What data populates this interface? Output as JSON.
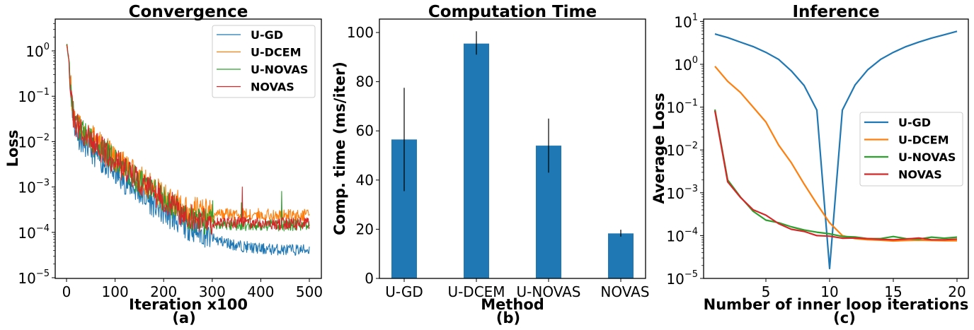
{
  "colors": {
    "U-GD": "#1f77b4",
    "U-DCEM": "#ff7f0e",
    "U-NOVAS": "#2ca02c",
    "NOVAS": "#d62728",
    "bar": "#1f77b4"
  },
  "chart_data": [
    {
      "id": "a",
      "type": "line",
      "title": "Convergence",
      "xlabel": "Iteration x100",
      "ylabel": "Loss",
      "subcaption": "(a)",
      "yscale": "log",
      "xlim": [
        -25,
        525
      ],
      "ylim": [
        1e-05,
        5
      ],
      "xticks": [
        0,
        100,
        200,
        300,
        400,
        500
      ],
      "yticks": [
        -5,
        -4,
        -3,
        -2,
        -1,
        0
      ],
      "legend": {
        "position": "upper right",
        "entries": [
          "U-GD",
          "U-DCEM",
          "U-NOVAS",
          "NOVAS"
        ]
      },
      "grid": false,
      "series": [
        {
          "name": "U-GD",
          "trend_x": [
            0,
            5,
            10,
            15,
            25,
            50,
            100,
            150,
            200,
            250,
            300,
            350,
            400,
            450,
            500
          ],
          "trend_y": [
            1.5,
            0.6,
            0.08,
            0.025,
            0.012,
            0.006,
            0.0018,
            0.0007,
            0.00025,
            0.00012,
            7e-05,
            5e-05,
            4.2e-05,
            4e-05,
            4e-05
          ],
          "noise": 0.28,
          "spikes": []
        },
        {
          "name": "U-DCEM",
          "trend_x": [
            0,
            5,
            10,
            15,
            25,
            50,
            100,
            150,
            200,
            250,
            300,
            350,
            400,
            450,
            500
          ],
          "trend_y": [
            1.5,
            0.6,
            0.1,
            0.03,
            0.02,
            0.012,
            0.004,
            0.0015,
            0.0006,
            0.0003,
            0.00024,
            0.00024,
            0.00024,
            0.00023,
            0.00023
          ],
          "noise": 0.3,
          "spikes": []
        },
        {
          "name": "U-NOVAS",
          "trend_x": [
            0,
            5,
            10,
            15,
            25,
            50,
            100,
            150,
            200,
            250,
            300,
            350,
            400,
            450,
            500
          ],
          "trend_y": [
            1.5,
            0.6,
            0.1,
            0.03,
            0.02,
            0.01,
            0.0035,
            0.0012,
            0.0005,
            0.00019,
            0.00015,
            0.000145,
            0.00014,
            0.00014,
            0.00014
          ],
          "noise": 0.3,
          "spikes": [
            [
              301,
              0.0005
            ],
            [
              360,
              0.00045
            ],
            [
              443,
              0.0008
            ]
          ]
        },
        {
          "name": "NOVAS",
          "trend_x": [
            0,
            5,
            10,
            15,
            25,
            50,
            100,
            150,
            200,
            250,
            300,
            350,
            400,
            450,
            500
          ],
          "trend_y": [
            1.5,
            0.6,
            0.08,
            0.025,
            0.018,
            0.01,
            0.0035,
            0.0012,
            0.0005,
            0.0002,
            0.00016,
            0.00016,
            0.000155,
            0.00015,
            0.00015
          ],
          "noise": 0.3,
          "spikes": [
            [
              362,
              0.001
            ]
          ]
        }
      ]
    },
    {
      "id": "b",
      "type": "bar",
      "title": "Computation Time",
      "xlabel": "Method",
      "ylabel": "Comp. time (ms/iter)",
      "subcaption": "(b)",
      "categories": [
        "U-GD",
        "U-DCEM",
        "U-NOVAS",
        "NOVAS"
      ],
      "values": [
        56.5,
        95.5,
        54.0,
        18.3
      ],
      "error_low": [
        35.5,
        91.0,
        43.0,
        17.0
      ],
      "error_high": [
        77.5,
        100.5,
        65.0,
        19.8
      ],
      "ylim": [
        0,
        105
      ],
      "yticks": [
        0,
        20,
        40,
        60,
        80,
        100
      ],
      "grid": false
    },
    {
      "id": "c",
      "type": "line",
      "title": "Inference",
      "xlabel": "Number of inner loop iterations",
      "ylabel": "Average Loss",
      "subcaption": "(c)",
      "yscale": "log",
      "xlim": [
        0.05,
        20.95
      ],
      "ylim": [
        1e-05,
        10
      ],
      "xticks": [
        5,
        10,
        15,
        20
      ],
      "yticks": [
        -5,
        -4,
        -3,
        -2,
        -1,
        0,
        1
      ],
      "legend": {
        "position": "center right",
        "entries": [
          "U-GD",
          "U-DCEM",
          "U-NOVAS",
          "NOVAS"
        ]
      },
      "grid": false,
      "x": [
        1,
        2,
        3,
        4,
        5,
        6,
        7,
        8,
        9,
        10,
        11,
        12,
        13,
        14,
        15,
        16,
        17,
        18,
        19,
        20
      ],
      "series": [
        {
          "name": "U-GD",
          "values": [
            5.1,
            4.2,
            3.3,
            2.6,
            1.9,
            1.3,
            0.7,
            0.32,
            0.085,
            1.7e-05,
            0.085,
            0.33,
            0.75,
            1.3,
            1.9,
            2.6,
            3.3,
            4.1,
            4.9,
            5.9
          ]
        },
        {
          "name": "U-DCEM",
          "values": [
            0.9,
            0.4,
            0.22,
            0.1,
            0.045,
            0.013,
            0.005,
            0.0016,
            0.00055,
            0.0002,
            0.0001,
            8.5e-05,
            8e-05,
            7.8e-05,
            7.5e-05,
            7.7e-05,
            7.8e-05,
            7.7e-05,
            7.6e-05,
            7.6e-05
          ]
        },
        {
          "name": "U-NOVAS",
          "values": [
            0.088,
            0.002,
            0.0008,
            0.00037,
            0.00023,
            0.0002,
            0.00016,
            0.000135,
            0.00012,
            0.00011,
            9.55e-05,
            9.3e-05,
            8.5e-05,
            8.5e-05,
            9.5e-05,
            8.5e-05,
            8.3e-05,
            9.2e-05,
            8.7e-05,
            9.2e-05
          ]
        },
        {
          "name": "NOVAS",
          "values": [
            0.082,
            0.0018,
            0.00078,
            0.0004,
            0.0003,
            0.00019,
            0.00014,
            0.000125,
            0.0001,
            9.7e-05,
            8.7e-05,
            8.8e-05,
            8.5e-05,
            8.2e-05,
            8e-05,
            8.3e-05,
            8.8e-05,
            8e-05,
            8e-05,
            8.3e-05
          ]
        }
      ]
    }
  ]
}
